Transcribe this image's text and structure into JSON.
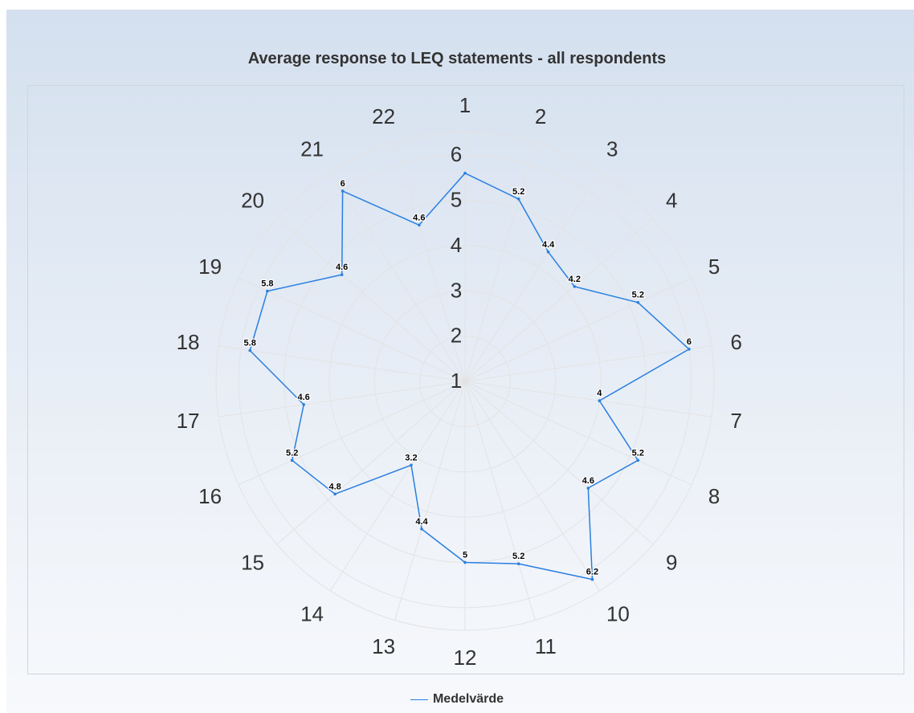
{
  "chart_data": {
    "type": "radar",
    "title": "Average response to LEQ statements - all respondents",
    "categories": [
      "1",
      "2",
      "3",
      "4",
      "5",
      "6",
      "7",
      "8",
      "9",
      "10",
      "11",
      "12",
      "13",
      "14",
      "15",
      "16",
      "17",
      "18",
      "19",
      "20",
      "21",
      "22"
    ],
    "series": [
      {
        "name": "Medelvärde",
        "color": "#2a7fe0",
        "values": [
          5.6,
          5.2,
          4.4,
          4.2,
          5.2,
          6,
          4,
          5.2,
          4.6,
          6.2,
          5.2,
          5,
          4.4,
          3.2,
          4.8,
          5.2,
          4.6,
          5.8,
          5.8,
          4.6,
          6,
          4.6
        ]
      }
    ],
    "data_labels": [
      "",
      "5.2",
      "4.4",
      "4.2",
      "5.2",
      "6",
      "4",
      "5.2",
      "4.6",
      "6.2",
      "5.2",
      "5",
      "4.4",
      "3.2",
      "4.8",
      "5.2",
      "4.6",
      "5.8",
      "5.8",
      "4.6",
      "6",
      "4.6"
    ],
    "radial_ticks": [
      "1",
      "2",
      "3",
      "4",
      "5",
      "6"
    ],
    "rlim": [
      1,
      6.5
    ],
    "grid": true,
    "legend_position": "bottom-center"
  }
}
